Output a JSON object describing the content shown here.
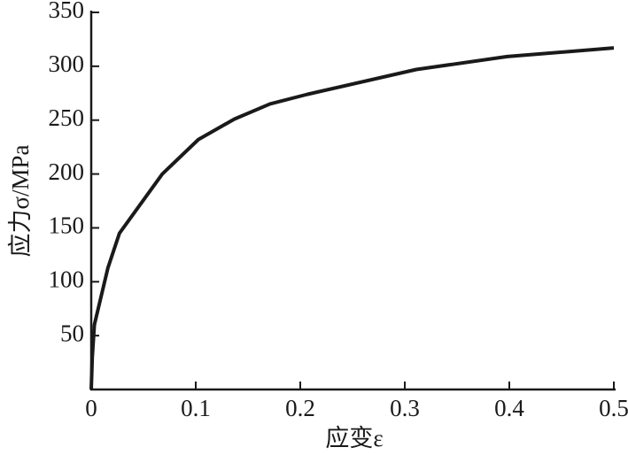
{
  "chart_data": {
    "type": "line",
    "x_label": "应变ε",
    "y_label": "应力σ/MPa",
    "x": [
      0,
      0.001,
      0.003,
      0.016,
      0.027,
      0.068,
      0.1025,
      0.137,
      0.171,
      0.207,
      0.311,
      0.398,
      0.5
    ],
    "values": [
      0,
      30,
      60,
      113,
      145,
      200,
      232,
      251,
      265,
      274,
      297,
      309,
      317
    ],
    "color": "#1a1a1a",
    "xlim": [
      0,
      0.5
    ],
    "ylim": [
      0,
      350
    ],
    "xticks": [
      0,
      0.1,
      0.2,
      0.3,
      0.4,
      0.5
    ],
    "yticks": [
      50,
      100,
      150,
      200,
      250,
      300,
      350
    ]
  }
}
